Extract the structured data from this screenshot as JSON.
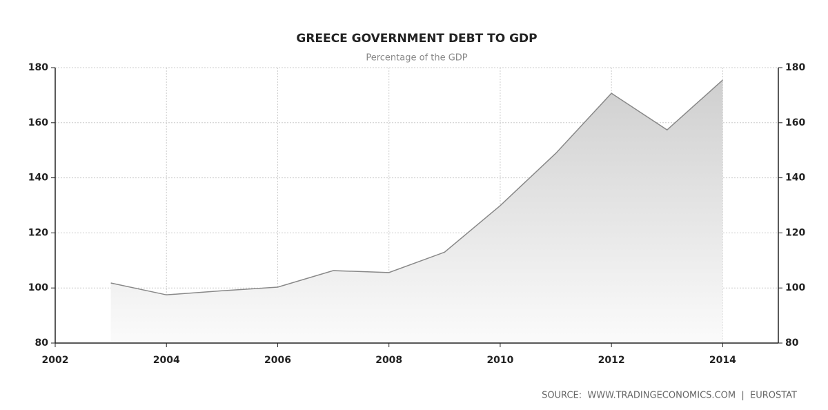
{
  "chart_data": {
    "type": "area",
    "title": "GREECE GOVERNMENT DEBT TO GDP",
    "subtitle": "Percentage of the GDP",
    "source": "SOURCE:  WWW.TRADINGECONOMICS.COM  |  EUROSTAT",
    "x": [
      2003,
      2004,
      2005,
      2006,
      2007,
      2008,
      2009,
      2010,
      2011,
      2012,
      2013,
      2014
    ],
    "series": [
      {
        "color": "#888888",
        "values": [
          101.8,
          97.5,
          99,
          100.3,
          106.3,
          105.6,
          113,
          129.9,
          148.9,
          170.7,
          157.4,
          175.5
        ]
      }
    ],
    "xlim": [
      2002,
      2015
    ],
    "xticks": [
      2002,
      2004,
      2006,
      2008,
      2010,
      2012,
      2014
    ],
    "ylim": [
      80,
      180
    ],
    "yticks": [
      80,
      100,
      120,
      140,
      160,
      180
    ],
    "y2lim": [
      80,
      180
    ],
    "y2ticks": [
      80,
      100,
      120,
      140,
      160,
      180
    ],
    "grid": true
  }
}
